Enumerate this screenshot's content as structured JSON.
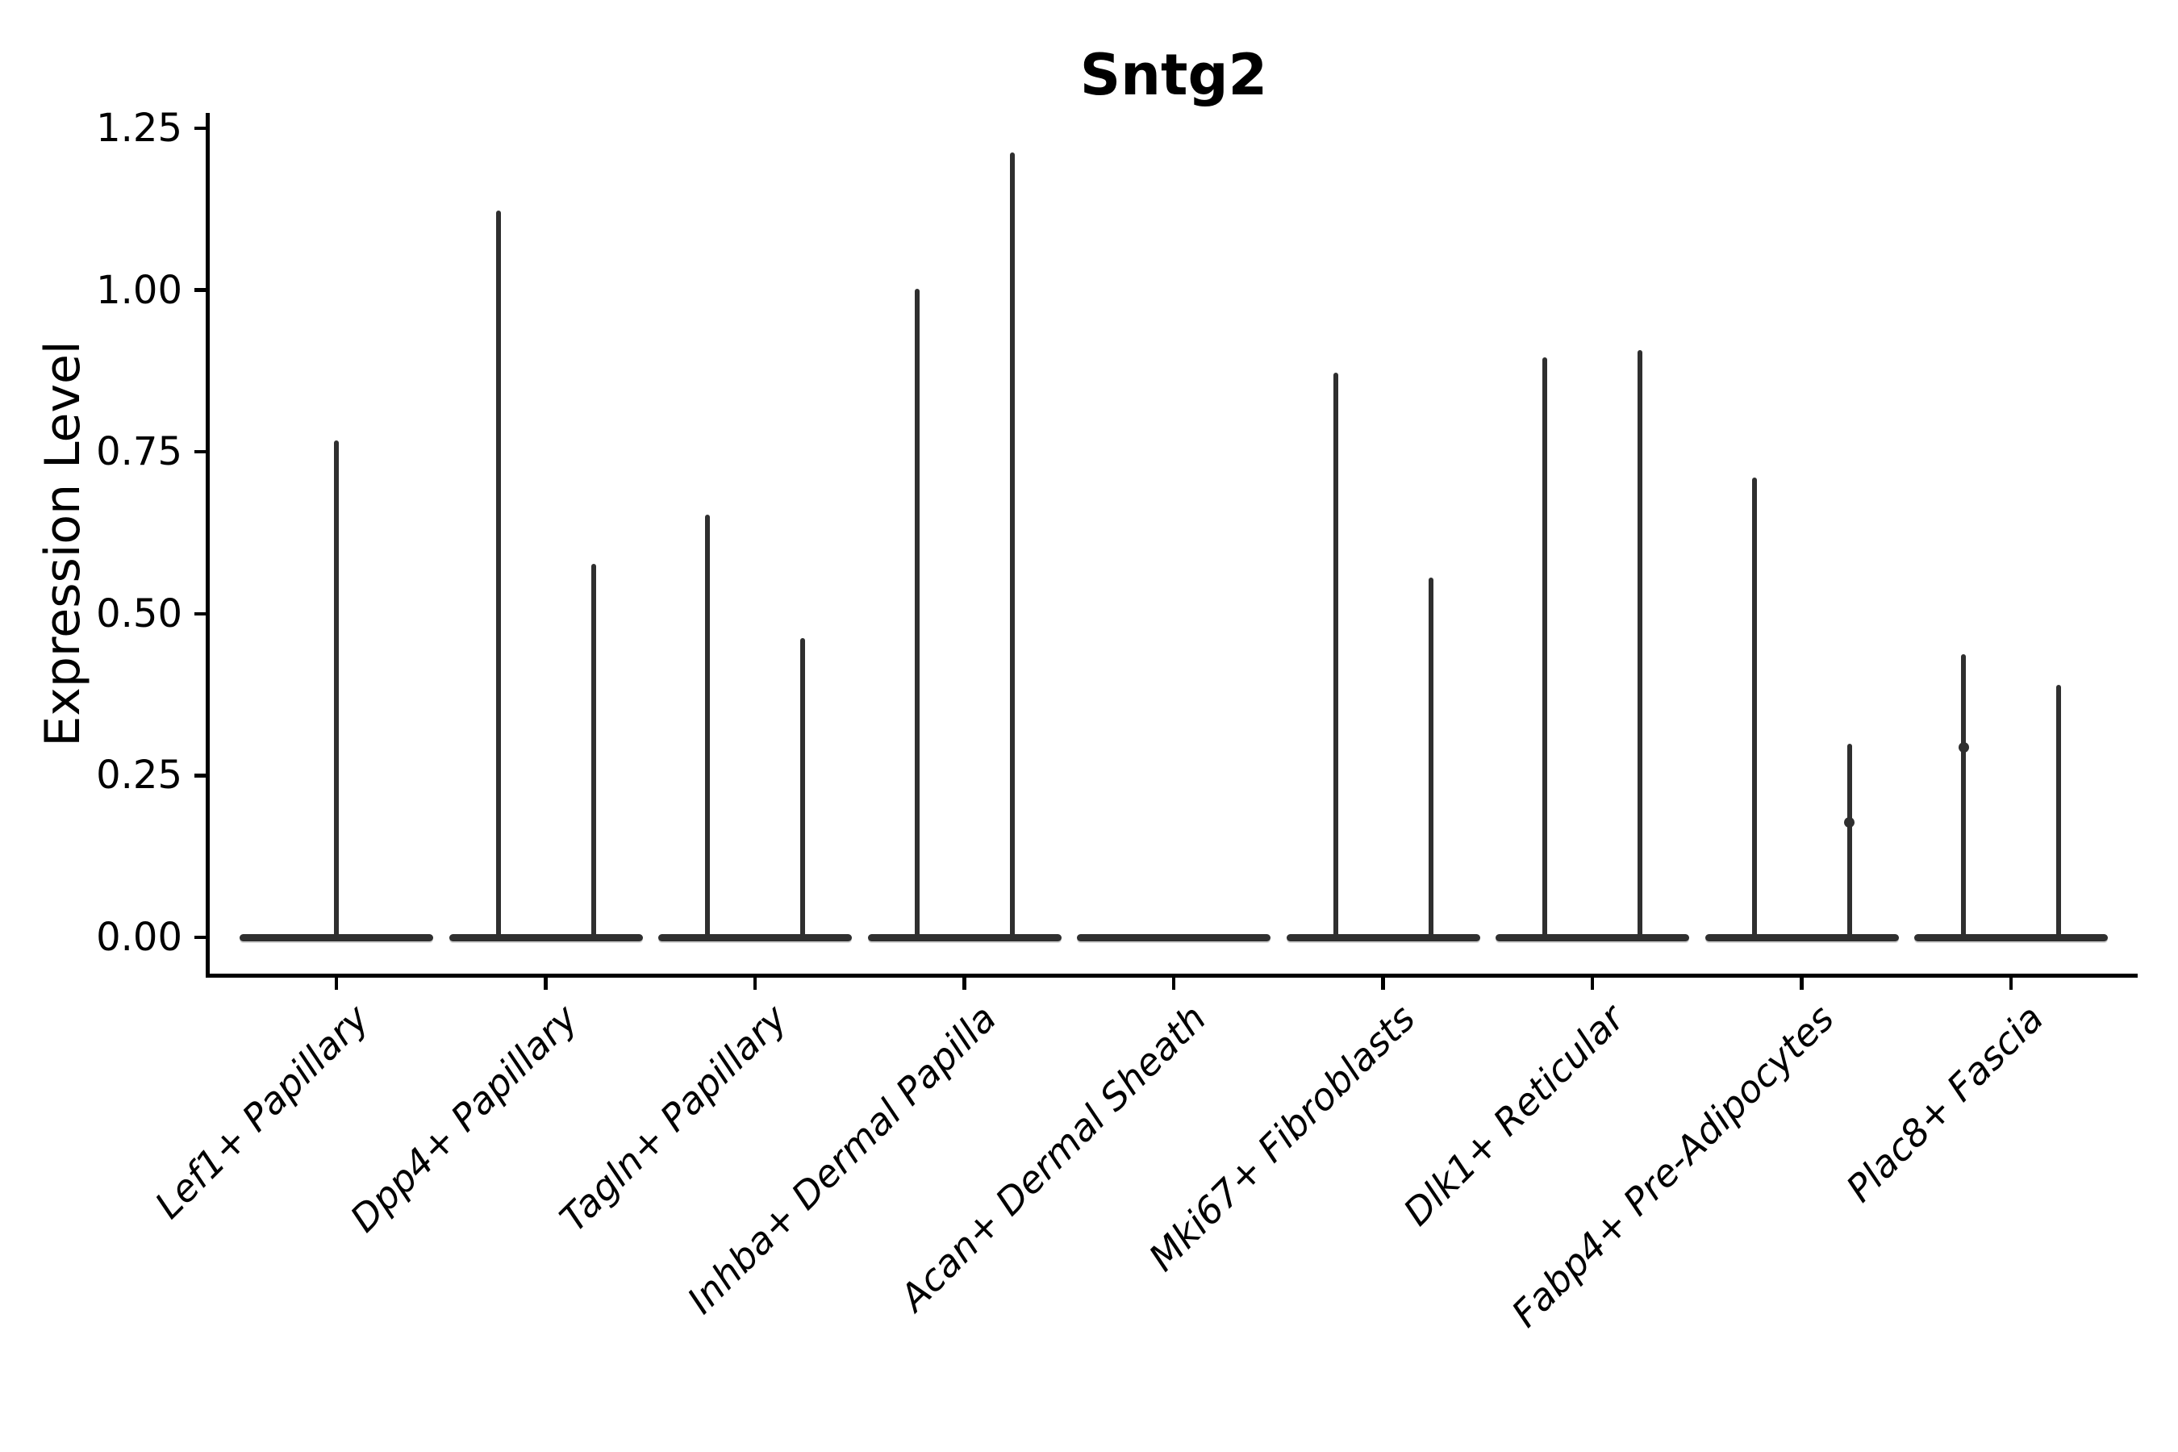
{
  "chart_data": {
    "type": "violin",
    "title": "Sntg2",
    "ylabel": "Expression Level",
    "xlabel": "",
    "grid": false,
    "legend": null,
    "ylim": [
      -0.06,
      1.27
    ],
    "yticks": [
      {
        "value": 0.0,
        "label": "0.00"
      },
      {
        "value": 0.25,
        "label": "0.25"
      },
      {
        "value": 0.5,
        "label": "0.50"
      },
      {
        "value": 0.75,
        "label": "0.75"
      },
      {
        "value": 1.0,
        "label": "1.00"
      },
      {
        "value": 1.25,
        "label": "1.25"
      }
    ],
    "colors": {
      "ink": "#2f2f2f",
      "axis": "#000000",
      "background": "#ffffff"
    },
    "categories": [
      {
        "label": "Lef1+ Papillary",
        "spikes": [
          {
            "pos": "center",
            "max": 0.765,
            "knots": []
          }
        ]
      },
      {
        "label": "Dpp4+ Papillary",
        "spikes": [
          {
            "pos": "left",
            "max": 1.12,
            "knots": []
          },
          {
            "pos": "right",
            "max": 0.575,
            "knots": []
          }
        ]
      },
      {
        "label": "Tagln+ Papillary",
        "spikes": [
          {
            "pos": "left",
            "max": 0.65,
            "knots": []
          },
          {
            "pos": "right",
            "max": 0.46,
            "knots": []
          }
        ]
      },
      {
        "label": "Inhba+ Dermal Papilla",
        "spikes": [
          {
            "pos": "left",
            "max": 1.0,
            "knots": []
          },
          {
            "pos": "right",
            "max": 1.21,
            "knots": []
          }
        ]
      },
      {
        "label": "Acan+ Dermal Sheath",
        "spikes": []
      },
      {
        "label": "Mki67+ Fibroblasts",
        "spikes": [
          {
            "pos": "left",
            "max": 0.87,
            "knots": []
          },
          {
            "pos": "right",
            "max": 0.553,
            "knots": []
          }
        ]
      },
      {
        "label": "Dlk1+ Reticular",
        "spikes": [
          {
            "pos": "left",
            "max": 0.893,
            "knots": []
          },
          {
            "pos": "right",
            "max": 0.905,
            "knots": []
          }
        ]
      },
      {
        "label": "Fabp4+ Pre-Adipocytes",
        "spikes": [
          {
            "pos": "left",
            "max": 0.708,
            "knots": []
          },
          {
            "pos": "right",
            "max": 0.297,
            "knots": [
              0.177
            ]
          }
        ]
      },
      {
        "label": "Plac8+ Fascia",
        "spikes": [
          {
            "pos": "left",
            "max": 0.435,
            "knots": [
              0.293
            ]
          },
          {
            "pos": "right",
            "max": 0.387,
            "knots": []
          }
        ]
      }
    ]
  }
}
